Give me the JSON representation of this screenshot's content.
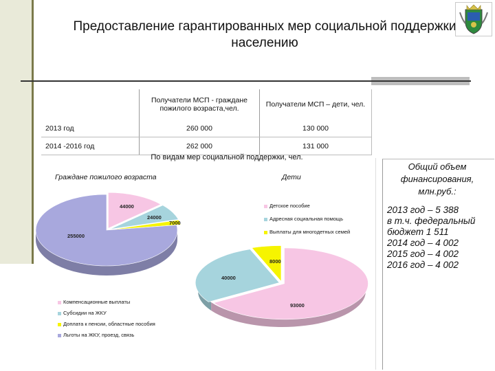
{
  "slide": {
    "title_line1": "Предоставление гарантированных мер социальной поддержки",
    "title_line2": "населению"
  },
  "table": {
    "header": [
      "",
      "Получатели МСП - граждане пожилого возраста,чел.",
      "Получатели МСП – дети, чел."
    ],
    "rows": [
      [
        "2013 год",
        "260 000",
        "130 000"
      ],
      [
        "2014 -2016  год",
        "262 000",
        "131 000"
      ]
    ]
  },
  "charts_title": "По видам мер социальной поддержки, чел.",
  "chart_data": [
    {
      "type": "pie",
      "title": "Граждане пожилого возраста",
      "categories": [
        "Компенсационные выплаты",
        "Субсидии на ЖКУ",
        "Доплата к пенсии, областные пособия",
        "Льготы на ЖКУ, проезд, связь"
      ],
      "values": [
        44000,
        24000,
        7000,
        255000
      ],
      "colors": [
        "#f7c6e4",
        "#a6d4dd",
        "#f6f400",
        "#a8a8dd"
      ]
    },
    {
      "type": "pie",
      "title": "Дети",
      "categories": [
        "Детское пособие",
        "Адресная социальная помощь",
        "Выплаты для многодетных семей"
      ],
      "values": [
        93000,
        40000,
        8000
      ],
      "colors": [
        "#f7c6e4",
        "#a6d4dd",
        "#f6f400"
      ]
    }
  ],
  "value_labels": {
    "elderly": [
      "44000",
      "24000",
      "7000",
      "255000"
    ],
    "children": [
      "93000",
      "40000",
      "8000"
    ]
  },
  "financing": {
    "heading": "Общий объем финансирования, млн.руб.:",
    "lines": [
      "2013 год – 5 388",
      "в т.ч. федеральный",
      "бюджет 1 511",
      "2014 год –  4 002",
      "2015 год – 4 002",
      "2016 год – 4 002"
    ]
  }
}
